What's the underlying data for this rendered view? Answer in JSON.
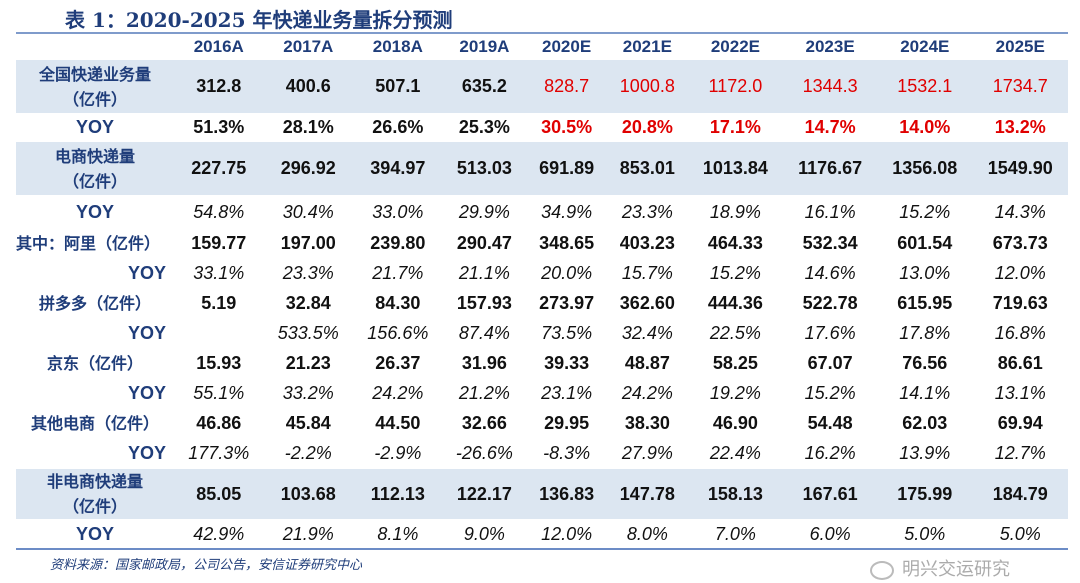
{
  "title": "表 1：2020-2025 年快递业务量拆分预测",
  "columns": [
    "2016A",
    "2017A",
    "2018A",
    "2019A",
    "2020E",
    "2021E",
    "2022E",
    "2023E",
    "2024E",
    "2025E"
  ],
  "rows": [
    {
      "label": "全国快递业务量（亿件）",
      "values": [
        "312.8",
        "400.6",
        "507.1",
        "635.2",
        "828.7",
        "1000.8",
        "1172.0",
        "1344.3",
        "1532.1",
        "1734.7"
      ]
    },
    {
      "label": "YOY",
      "values": [
        "51.3%",
        "28.1%",
        "26.6%",
        "25.3%",
        "30.5%",
        "20.8%",
        "17.1%",
        "14.7%",
        "14.0%",
        "13.2%"
      ]
    },
    {
      "label": "电商快递量（亿件）",
      "values": [
        "227.75",
        "296.92",
        "394.97",
        "513.03",
        "691.89",
        "853.01",
        "1013.84",
        "1176.67",
        "1356.08",
        "1549.90"
      ]
    },
    {
      "label": "YOY",
      "values": [
        "54.8%",
        "30.4%",
        "33.0%",
        "29.9%",
        "34.9%",
        "23.3%",
        "18.9%",
        "16.1%",
        "15.2%",
        "14.3%"
      ]
    },
    {
      "label": "其中：阿里（亿件）",
      "values": [
        "159.77",
        "197.00",
        "239.80",
        "290.47",
        "348.65",
        "403.23",
        "464.33",
        "532.34",
        "601.54",
        "673.73"
      ]
    },
    {
      "label": "YOY",
      "values": [
        "33.1%",
        "23.3%",
        "21.7%",
        "21.1%",
        "20.0%",
        "15.7%",
        "15.2%",
        "14.6%",
        "13.0%",
        "12.0%"
      ]
    },
    {
      "label": "拼多多（亿件）",
      "values": [
        "5.19",
        "32.84",
        "84.30",
        "157.93",
        "273.97",
        "362.60",
        "444.36",
        "522.78",
        "615.95",
        "719.63"
      ]
    },
    {
      "label": "YOY",
      "values": [
        "",
        "533.5%",
        "156.6%",
        "87.4%",
        "73.5%",
        "32.4%",
        "22.5%",
        "17.6%",
        "17.8%",
        "16.8%"
      ]
    },
    {
      "label": "京东（亿件）",
      "values": [
        "15.93",
        "21.23",
        "26.37",
        "31.96",
        "39.33",
        "48.87",
        "58.25",
        "67.07",
        "76.56",
        "86.61"
      ]
    },
    {
      "label": "YOY",
      "values": [
        "55.1%",
        "33.2%",
        "24.2%",
        "21.2%",
        "23.1%",
        "24.2%",
        "19.2%",
        "15.2%",
        "14.1%",
        "13.1%"
      ]
    },
    {
      "label": "其他电商（亿件）",
      "values": [
        "46.86",
        "45.84",
        "44.50",
        "32.66",
        "29.95",
        "38.30",
        "46.90",
        "54.48",
        "62.03",
        "69.94"
      ]
    },
    {
      "label": "YOY",
      "values": [
        "177.3%",
        "-2.2%",
        "-2.9%",
        "-26.6%",
        "-8.3%",
        "27.9%",
        "22.4%",
        "16.2%",
        "13.9%",
        "12.7%"
      ]
    },
    {
      "label": "非电商快递量（亿件）",
      "values": [
        "85.05",
        "103.68",
        "112.13",
        "122.17",
        "136.83",
        "147.78",
        "158.13",
        "167.61",
        "175.99",
        "184.79"
      ]
    },
    {
      "label": "YOY",
      "values": [
        "42.9%",
        "21.9%",
        "8.1%",
        "9.0%",
        "12.0%",
        "8.0%",
        "7.0%",
        "6.0%",
        "5.0%",
        "5.0%"
      ]
    }
  ],
  "source": "资料来源：国家邮政局，公司公告，安信证券研究中心",
  "watermark": "明兴交运研究",
  "colors": {
    "header": "#1F3D7A",
    "shade": "#DCE6F1",
    "forecast_red": "#E00000"
  }
}
